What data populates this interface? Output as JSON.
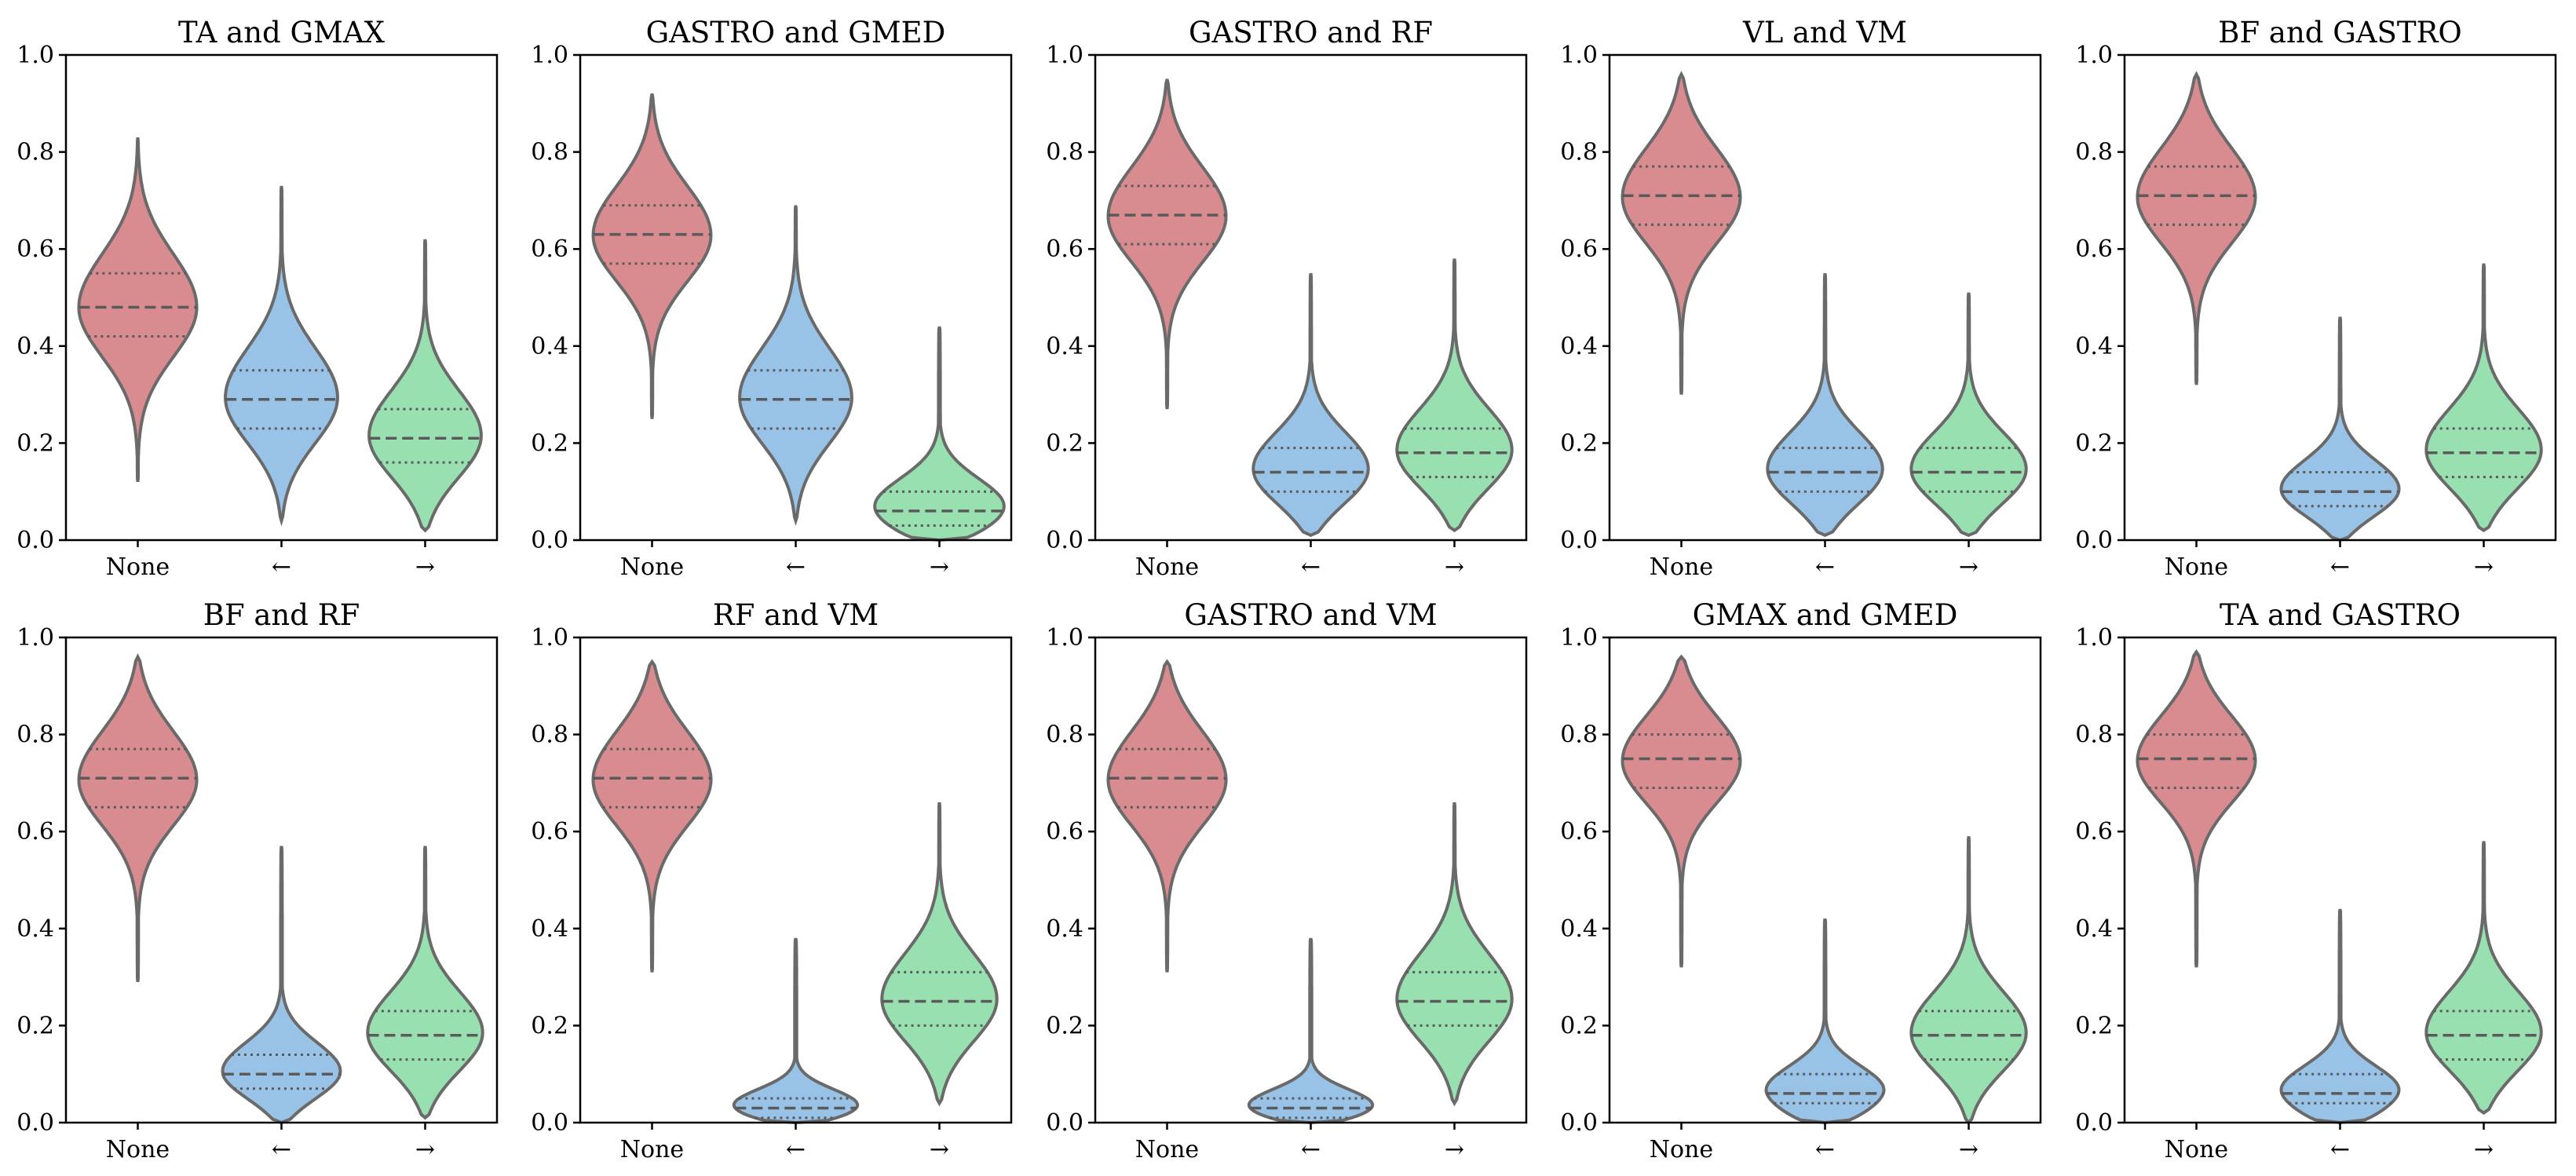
{
  "chart_data": [
    {
      "type": "violin",
      "title": "TA and GMAX",
      "categories": [
        "None",
        "←",
        "→"
      ],
      "ylim": [
        0,
        1
      ],
      "yticks": [
        "0.0",
        "0.2",
        "0.4",
        "0.6",
        "0.8",
        "1.0"
      ],
      "series": [
        {
          "name": "None",
          "color": "#d98c8f",
          "min": 0.12,
          "q1": 0.42,
          "median": 0.48,
          "q3": 0.55,
          "max": 0.83,
          "width": 0.82
        },
        {
          "name": "←",
          "color": "#98c3e6",
          "min": 0.04,
          "q1": 0.23,
          "median": 0.29,
          "q3": 0.35,
          "max": 0.73,
          "width": 0.78
        },
        {
          "name": "→",
          "color": "#98e0b0",
          "min": 0.02,
          "q1": 0.16,
          "median": 0.21,
          "q3": 0.27,
          "max": 0.62,
          "width": 0.78
        }
      ]
    },
    {
      "type": "violin",
      "title": "GASTRO and GMED",
      "categories": [
        "None",
        "←",
        "→"
      ],
      "ylim": [
        0,
        1
      ],
      "yticks": [
        "0.0",
        "0.2",
        "0.4",
        "0.6",
        "0.8",
        "1.0"
      ],
      "series": [
        {
          "name": "None",
          "color": "#d98c8f",
          "min": 0.25,
          "q1": 0.57,
          "median": 0.63,
          "q3": 0.69,
          "max": 0.92,
          "width": 0.82
        },
        {
          "name": "←",
          "color": "#98c3e6",
          "min": 0.04,
          "q1": 0.23,
          "median": 0.29,
          "q3": 0.35,
          "max": 0.69,
          "width": 0.78
        },
        {
          "name": "→",
          "color": "#98e0b0",
          "min": 0.0,
          "q1": 0.03,
          "median": 0.06,
          "q3": 0.1,
          "max": 0.44,
          "width": 0.9
        }
      ]
    },
    {
      "type": "violin",
      "title": "GASTRO and RF",
      "categories": [
        "None",
        "←",
        "→"
      ],
      "ylim": [
        0,
        1
      ],
      "yticks": [
        "0.0",
        "0.2",
        "0.4",
        "0.6",
        "0.8",
        "1.0"
      ],
      "series": [
        {
          "name": "None",
          "color": "#d98c8f",
          "min": 0.27,
          "q1": 0.61,
          "median": 0.67,
          "q3": 0.73,
          "max": 0.95,
          "width": 0.82
        },
        {
          "name": "←",
          "color": "#98c3e6",
          "min": 0.01,
          "q1": 0.1,
          "median": 0.14,
          "q3": 0.19,
          "max": 0.55,
          "width": 0.8
        },
        {
          "name": "→",
          "color": "#98e0b0",
          "min": 0.02,
          "q1": 0.13,
          "median": 0.18,
          "q3": 0.23,
          "max": 0.58,
          "width": 0.8
        }
      ]
    },
    {
      "type": "violin",
      "title": "VL and VM",
      "categories": [
        "None",
        "←",
        "→"
      ],
      "ylim": [
        0,
        1
      ],
      "yticks": [
        "0.0",
        "0.2",
        "0.4",
        "0.6",
        "0.8",
        "1.0"
      ],
      "series": [
        {
          "name": "None",
          "color": "#d98c8f",
          "min": 0.3,
          "q1": 0.65,
          "median": 0.71,
          "q3": 0.77,
          "max": 0.96,
          "width": 0.82
        },
        {
          "name": "←",
          "color": "#98c3e6",
          "min": 0.01,
          "q1": 0.1,
          "median": 0.14,
          "q3": 0.19,
          "max": 0.55,
          "width": 0.8
        },
        {
          "name": "→",
          "color": "#98e0b0",
          "min": 0.01,
          "q1": 0.1,
          "median": 0.14,
          "q3": 0.19,
          "max": 0.51,
          "width": 0.8
        }
      ]
    },
    {
      "type": "violin",
      "title": "BF and GASTRO",
      "categories": [
        "None",
        "←",
        "→"
      ],
      "ylim": [
        0,
        1
      ],
      "yticks": [
        "0.0",
        "0.2",
        "0.4",
        "0.6",
        "0.8",
        "1.0"
      ],
      "series": [
        {
          "name": "None",
          "color": "#d98c8f",
          "min": 0.32,
          "q1": 0.65,
          "median": 0.71,
          "q3": 0.77,
          "max": 0.96,
          "width": 0.82
        },
        {
          "name": "←",
          "color": "#98c3e6",
          "min": 0.0,
          "q1": 0.07,
          "median": 0.1,
          "q3": 0.14,
          "max": 0.46,
          "width": 0.82
        },
        {
          "name": "→",
          "color": "#98e0b0",
          "min": 0.02,
          "q1": 0.13,
          "median": 0.18,
          "q3": 0.23,
          "max": 0.57,
          "width": 0.8
        }
      ]
    },
    {
      "type": "violin",
      "title": "BF and RF",
      "categories": [
        "None",
        "←",
        "→"
      ],
      "ylim": [
        0,
        1
      ],
      "yticks": [
        "0.0",
        "0.2",
        "0.4",
        "0.6",
        "0.8",
        "1.0"
      ],
      "series": [
        {
          "name": "None",
          "color": "#d98c8f",
          "min": 0.29,
          "q1": 0.65,
          "median": 0.71,
          "q3": 0.77,
          "max": 0.96,
          "width": 0.82
        },
        {
          "name": "←",
          "color": "#98c3e6",
          "min": 0.0,
          "q1": 0.07,
          "median": 0.1,
          "q3": 0.14,
          "max": 0.57,
          "width": 0.82
        },
        {
          "name": "→",
          "color": "#98e0b0",
          "min": 0.01,
          "q1": 0.13,
          "median": 0.18,
          "q3": 0.23,
          "max": 0.57,
          "width": 0.8
        }
      ]
    },
    {
      "type": "violin",
      "title": "RF and VM",
      "categories": [
        "None",
        "←",
        "→"
      ],
      "ylim": [
        0,
        1
      ],
      "yticks": [
        "0.0",
        "0.2",
        "0.4",
        "0.6",
        "0.8",
        "1.0"
      ],
      "series": [
        {
          "name": "None",
          "color": "#d98c8f",
          "min": 0.31,
          "q1": 0.65,
          "median": 0.71,
          "q3": 0.77,
          "max": 0.95,
          "width": 0.82
        },
        {
          "name": "←",
          "color": "#98c3e6",
          "min": 0.0,
          "q1": 0.01,
          "median": 0.03,
          "q3": 0.05,
          "max": 0.38,
          "width": 0.86
        },
        {
          "name": "→",
          "color": "#98e0b0",
          "min": 0.04,
          "q1": 0.2,
          "median": 0.25,
          "q3": 0.31,
          "max": 0.66,
          "width": 0.8
        }
      ]
    },
    {
      "type": "violin",
      "title": "GASTRO and VM",
      "categories": [
        "None",
        "←",
        "→"
      ],
      "ylim": [
        0,
        1
      ],
      "yticks": [
        "0.0",
        "0.2",
        "0.4",
        "0.6",
        "0.8",
        "1.0"
      ],
      "series": [
        {
          "name": "None",
          "color": "#d98c8f",
          "min": 0.31,
          "q1": 0.65,
          "median": 0.71,
          "q3": 0.77,
          "max": 0.95,
          "width": 0.82
        },
        {
          "name": "←",
          "color": "#98c3e6",
          "min": 0.0,
          "q1": 0.01,
          "median": 0.03,
          "q3": 0.05,
          "max": 0.38,
          "width": 0.86
        },
        {
          "name": "→",
          "color": "#98e0b0",
          "min": 0.04,
          "q1": 0.2,
          "median": 0.25,
          "q3": 0.31,
          "max": 0.66,
          "width": 0.8
        }
      ]
    },
    {
      "type": "violin",
      "title": "GMAX and GMED",
      "categories": [
        "None",
        "←",
        "→"
      ],
      "ylim": [
        0,
        1
      ],
      "yticks": [
        "0.0",
        "0.2",
        "0.4",
        "0.6",
        "0.8",
        "1.0"
      ],
      "series": [
        {
          "name": "None",
          "color": "#d98c8f",
          "min": 0.32,
          "q1": 0.69,
          "median": 0.75,
          "q3": 0.8,
          "max": 0.96,
          "width": 0.82
        },
        {
          "name": "←",
          "color": "#98c3e6",
          "min": 0.0,
          "q1": 0.04,
          "median": 0.06,
          "q3": 0.1,
          "max": 0.42,
          "width": 0.82
        },
        {
          "name": "→",
          "color": "#98e0b0",
          "min": 0.0,
          "q1": 0.13,
          "median": 0.18,
          "q3": 0.23,
          "max": 0.59,
          "width": 0.8
        }
      ]
    },
    {
      "type": "violin",
      "title": "TA and GASTRO",
      "categories": [
        "None",
        "←",
        "→"
      ],
      "ylim": [
        0,
        1
      ],
      "yticks": [
        "0.0",
        "0.2",
        "0.4",
        "0.6",
        "0.8",
        "1.0"
      ],
      "series": [
        {
          "name": "None",
          "color": "#d98c8f",
          "min": 0.32,
          "q1": 0.69,
          "median": 0.75,
          "q3": 0.8,
          "max": 0.97,
          "width": 0.82
        },
        {
          "name": "←",
          "color": "#98c3e6",
          "min": 0.0,
          "q1": 0.04,
          "median": 0.06,
          "q3": 0.1,
          "max": 0.44,
          "width": 0.82
        },
        {
          "name": "→",
          "color": "#98e0b0",
          "min": 0.02,
          "q1": 0.13,
          "median": 0.18,
          "q3": 0.23,
          "max": 0.58,
          "width": 0.8
        }
      ]
    }
  ]
}
